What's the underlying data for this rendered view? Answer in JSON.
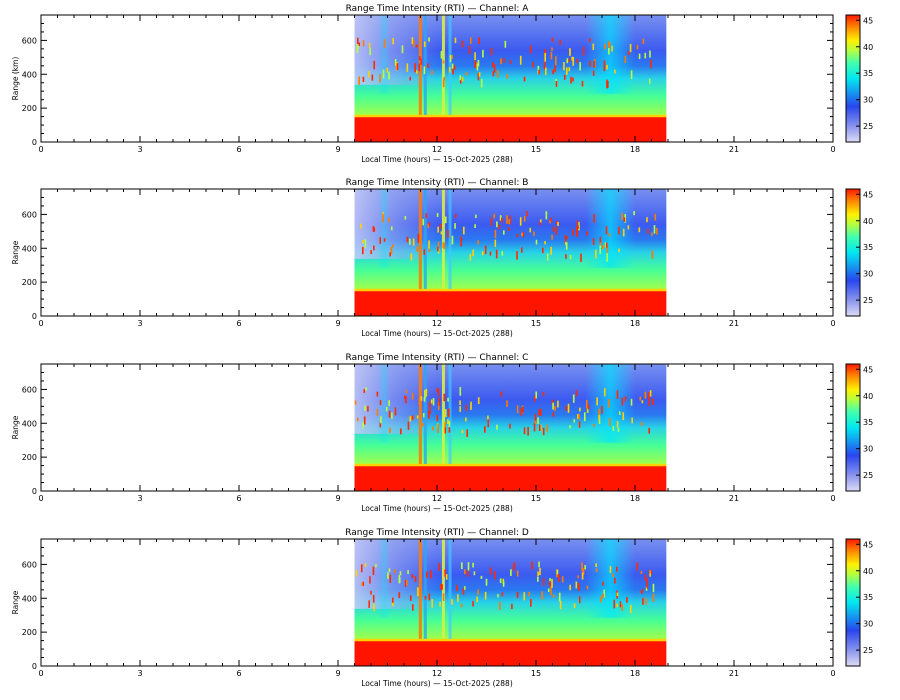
{
  "chart_data": [
    {
      "type": "heatmap",
      "title": "Range Time Intensity (RTI) — Channel: A",
      "xlabel": "Local Time (hours) — 15-Oct-2025 (288)",
      "ylabel": "Range (km)",
      "xlim": [
        0,
        24
      ],
      "ylim": [
        0,
        750
      ],
      "x_ticks": [
        "0",
        "3",
        "6",
        "9",
        "12",
        "15",
        "18",
        "21",
        "0"
      ],
      "y_ticks": [
        "0",
        "200",
        "400",
        "600"
      ],
      "data_time_span": [
        9.5,
        18.95
      ],
      "colorbar": {
        "range": [
          22,
          46
        ],
        "ticks": [
          "25",
          "30",
          "35",
          "40",
          "45"
        ]
      }
    },
    {
      "type": "heatmap",
      "title": "Range Time Intensity (RTI) — Channel: B",
      "xlabel": "Local Time (hours) — 15-Oct-2025 (288)",
      "ylabel": "Range",
      "xlim": [
        0,
        24
      ],
      "ylim": [
        0,
        750
      ],
      "x_ticks": [
        "0",
        "3",
        "6",
        "9",
        "12",
        "15",
        "18",
        "21",
        "0"
      ],
      "y_ticks": [
        "0",
        "200",
        "400",
        "600"
      ],
      "data_time_span": [
        9.5,
        18.95
      ],
      "colorbar": {
        "range": [
          22,
          46
        ],
        "ticks": [
          "25",
          "30",
          "35",
          "40",
          "45"
        ]
      }
    },
    {
      "type": "heatmap",
      "title": "Range Time Intensity (RTI) — Channel: C",
      "xlabel": "Local Time (hours) — 15-Oct-2025 (288)",
      "ylabel": "Range",
      "xlim": [
        0,
        24
      ],
      "ylim": [
        0,
        750
      ],
      "x_ticks": [
        "0",
        "3",
        "6",
        "9",
        "12",
        "15",
        "18",
        "21",
        "0"
      ],
      "y_ticks": [
        "0",
        "200",
        "400",
        "600"
      ],
      "data_time_span": [
        9.5,
        18.95
      ],
      "colorbar": {
        "range": [
          22,
          46
        ],
        "ticks": [
          "25",
          "30",
          "35",
          "40",
          "45"
        ]
      }
    },
    {
      "type": "heatmap",
      "title": "Range Time Intensity (RTI) — Channel: D",
      "xlabel": "Local Time (hours) — 15-Oct-2025 (288)",
      "ylabel": "Range",
      "xlim": [
        0,
        24
      ],
      "ylim": [
        0,
        750
      ],
      "x_ticks": [
        "0",
        "3",
        "6",
        "9",
        "12",
        "15",
        "18",
        "21",
        "0"
      ],
      "y_ticks": [
        "0",
        "200",
        "400",
        "600"
      ],
      "data_time_span": [
        9.5,
        18.95
      ],
      "colorbar": {
        "range": [
          22,
          46
        ],
        "ticks": [
          "25",
          "30",
          "35",
          "40",
          "45"
        ]
      }
    }
  ]
}
